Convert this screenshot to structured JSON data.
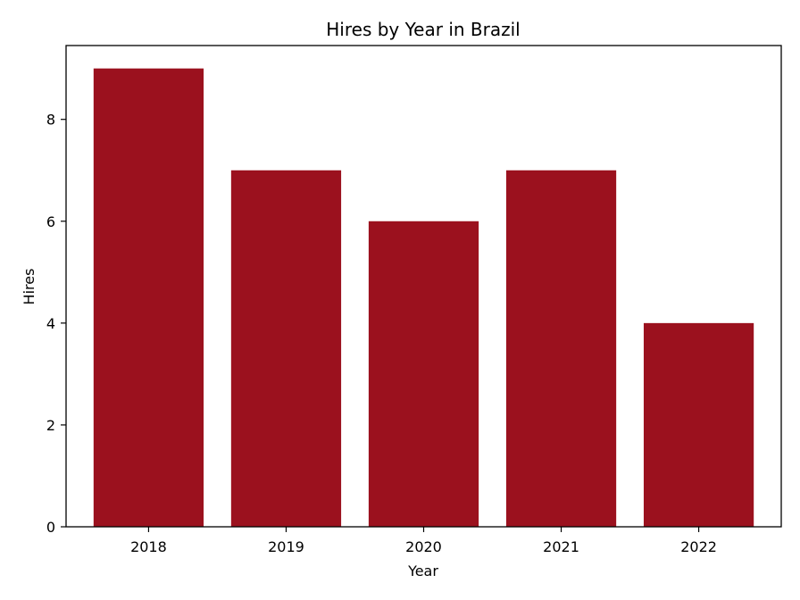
{
  "chart_data": {
    "type": "bar",
    "title": "Hires by Year in Brazil",
    "xlabel": "Year",
    "ylabel": "Hires",
    "categories": [
      "2018",
      "2019",
      "2020",
      "2021",
      "2022"
    ],
    "values": [
      9,
      7,
      6,
      7,
      4
    ],
    "ylim": [
      0,
      9.45
    ],
    "yticks": [
      0,
      2,
      4,
      6,
      8
    ],
    "bar_color": "#9b111e",
    "grid": false,
    "legend": "none"
  }
}
